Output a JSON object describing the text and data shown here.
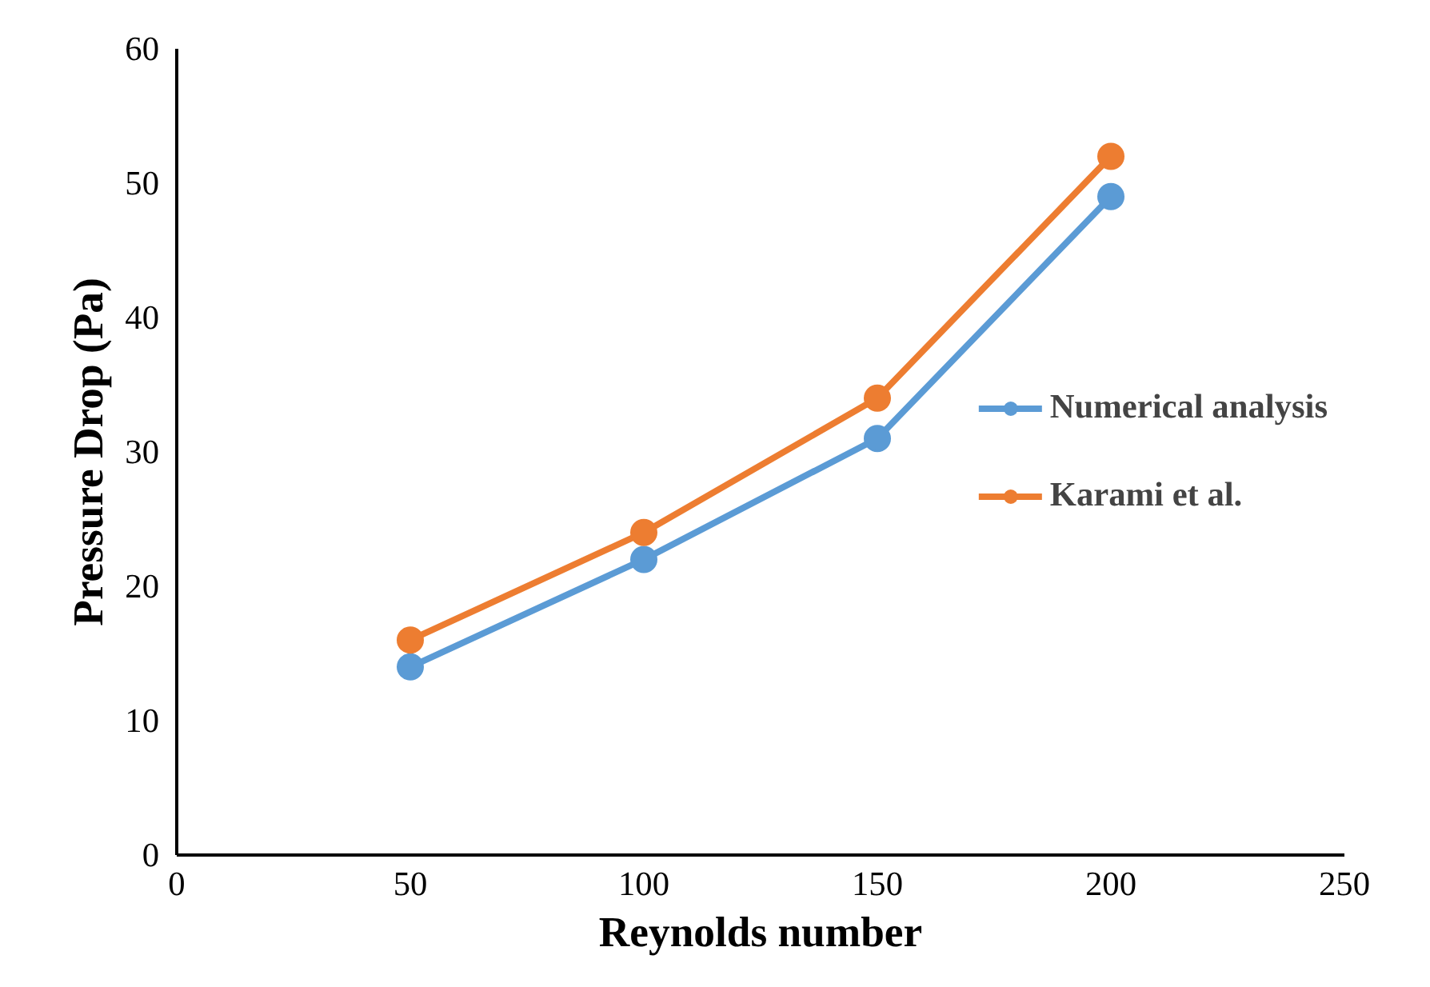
{
  "chart_data": {
    "type": "line",
    "xlabel": "Reynolds number",
    "ylabel": "Pressure Drop (Pa)",
    "x": [
      50,
      100,
      150,
      200
    ],
    "series": [
      {
        "name": "Numerical analysis",
        "color": "#5b9bd5",
        "values": [
          14,
          22,
          31,
          49
        ]
      },
      {
        "name": "Karami et al.",
        "color": "#ed7d31",
        "values": [
          16,
          24,
          34,
          52
        ]
      }
    ],
    "xlim": [
      0,
      250
    ],
    "xticks": [
      0,
      50,
      100,
      150,
      200,
      250
    ],
    "ylim": [
      0,
      60
    ],
    "yticks": [
      0,
      10,
      20,
      30,
      40,
      50,
      60
    ],
    "grid": false,
    "legend": "right",
    "marker": "circle",
    "line_style": "solid"
  }
}
